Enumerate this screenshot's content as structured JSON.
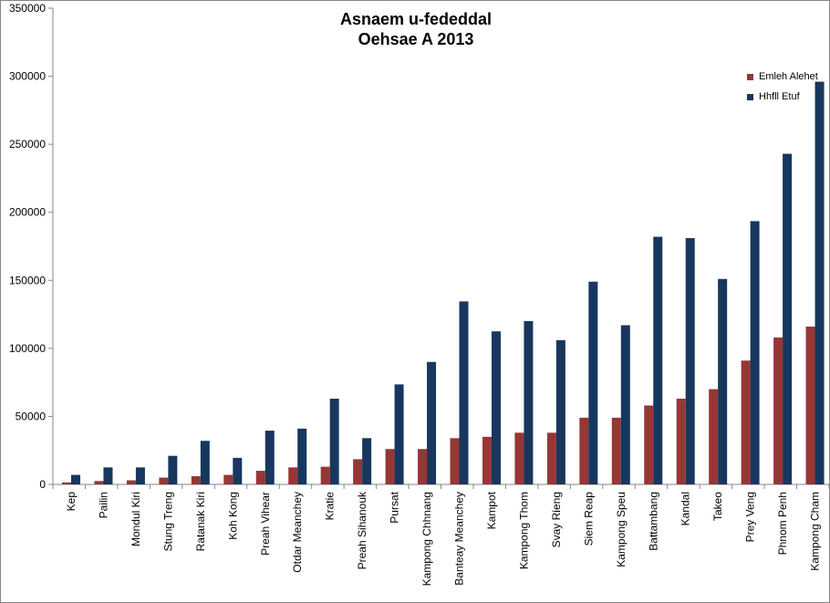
{
  "chart_data": {
    "type": "bar",
    "title": "Asnaem u-fededdal",
    "subtitle": "Oehsae A 2013",
    "categories": [
      "Kep",
      "Pailin",
      "Mondul Kiri",
      "Stung Treng",
      "Ratanak Kiri",
      "Koh Kong",
      "Preah Vihear",
      "Otdar Meanchey",
      "Kratie",
      "Preah Sihanouk",
      "Pursat",
      "Kampong Chhnang",
      "Banteay Meanchey",
      "Kampot",
      "Kampong Thom",
      "Svay Rieng",
      "Siem Reap",
      "Kampong Speu",
      "Battambang",
      "Kandal",
      "Takeo",
      "Prey Veng",
      "Phnom Penh",
      "Kampong Cham"
    ],
    "series": [
      {
        "name": "Emleh Alehet",
        "color": "#953735",
        "values": [
          1500,
          2500,
          3000,
          5000,
          6000,
          7000,
          10000,
          12500,
          13000,
          18500,
          26000,
          26000,
          34000,
          35000,
          38000,
          38000,
          49000,
          49000,
          58000,
          63000,
          70000,
          91000,
          108000,
          116000
        ]
      },
      {
        "name": "Hhfll Etuf",
        "color": "#17375e",
        "values": [
          7000,
          12500,
          12500,
          21000,
          32000,
          19500,
          39500,
          41000,
          63000,
          34000,
          73500,
          90000,
          134500,
          112500,
          120000,
          106000,
          149000,
          117000,
          182000,
          181000,
          151000,
          193500,
          243000,
          296000
        ]
      }
    ],
    "ylim": [
      0,
      350000
    ],
    "yticks": [
      0,
      50000,
      100000,
      150000,
      200000,
      250000,
      300000,
      350000
    ],
    "grid": false,
    "legend": "top-right"
  }
}
